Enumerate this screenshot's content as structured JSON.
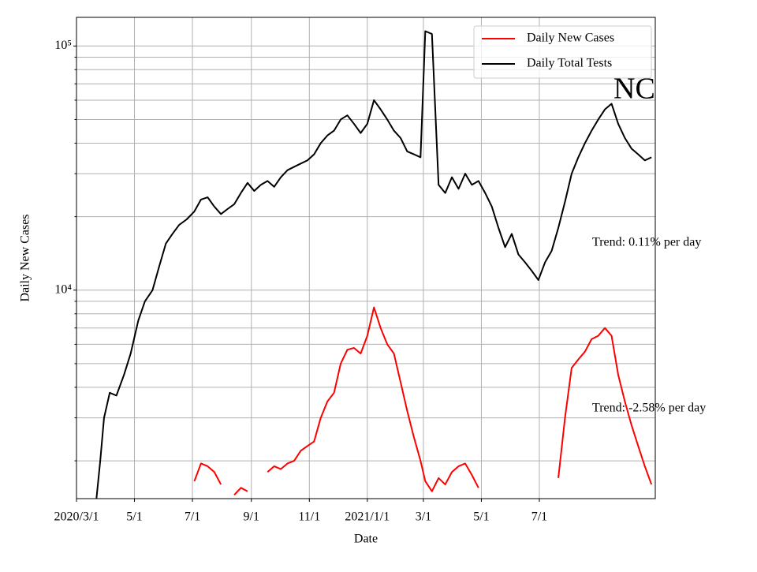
{
  "chart_data": {
    "type": "line",
    "title": "NC",
    "xlabel": "Date",
    "ylabel": "Daily New Cases",
    "log_y": true,
    "grid": true,
    "legend": "upper right",
    "annotations": [
      "Trend: 0.11% per day",
      "Trend: -2.58% per day"
    ],
    "x": [
      "2020-03-22",
      "2020-03-26",
      "2020-03-30",
      "2020-04-05",
      "2020-04-12",
      "2020-04-20",
      "2020-04-27",
      "2020-05-05",
      "2020-05-12",
      "2020-05-20",
      "2020-05-27",
      "2020-06-03",
      "2020-06-10",
      "2020-06-17",
      "2020-06-25",
      "2020-07-03",
      "2020-07-10",
      "2020-07-17",
      "2020-07-24",
      "2020-07-31",
      "2020-08-07",
      "2020-08-14",
      "2020-08-21",
      "2020-08-28",
      "2020-09-04",
      "2020-09-11",
      "2020-09-18",
      "2020-09-25",
      "2020-10-02",
      "2020-10-09",
      "2020-10-16",
      "2020-10-23",
      "2020-10-30",
      "2020-11-06",
      "2020-11-13",
      "2020-11-20",
      "2020-11-27",
      "2020-12-04",
      "2020-12-11",
      "2020-12-18",
      "2020-12-25",
      "2021-01-01",
      "2021-01-08",
      "2021-01-15",
      "2021-01-22",
      "2021-01-29",
      "2021-02-05",
      "2021-02-12",
      "2021-02-19",
      "2021-02-26",
      "2021-03-03",
      "2021-03-10",
      "2021-03-17",
      "2021-03-24",
      "2021-03-31",
      "2021-04-07",
      "2021-04-14",
      "2021-04-21",
      "2021-04-28",
      "2021-05-05",
      "2021-05-12",
      "2021-05-19",
      "2021-05-26",
      "2021-06-02",
      "2021-06-09",
      "2021-06-16",
      "2021-06-23",
      "2021-06-30",
      "2021-07-07",
      "2021-07-14",
      "2021-07-21",
      "2021-07-28",
      "2021-08-04",
      "2021-08-11",
      "2021-08-18",
      "2021-08-25",
      "2021-09-01",
      "2021-09-08",
      "2021-09-15",
      "2021-09-22",
      "2021-09-29",
      "2021-10-06",
      "2021-10-13",
      "2021-10-20",
      "2021-10-27"
    ],
    "series": [
      {
        "name": "Daily New Cases",
        "color": "#ff0000",
        "values": [
          null,
          null,
          null,
          null,
          null,
          null,
          null,
          null,
          null,
          null,
          null,
          null,
          null,
          null,
          null,
          1650,
          1950,
          1900,
          1800,
          1600,
          null,
          1450,
          1550,
          1500,
          null,
          null,
          1800,
          1900,
          1850,
          1950,
          2000,
          2200,
          2300,
          2400,
          3000,
          3500,
          3800,
          5000,
          5700,
          5800,
          5500,
          6500,
          8500,
          7000,
          6000,
          5500,
          4200,
          3200,
          2500,
          2000,
          1650,
          1500,
          1700,
          1600,
          1800,
          1900,
          1950,
          1750,
          1550,
          null,
          null,
          null,
          null,
          null,
          null,
          null,
          null,
          null,
          null,
          null,
          1700,
          3000,
          4800,
          5200,
          5600,
          6300,
          6500,
          7000,
          6500,
          4500,
          3500,
          2800,
          2300,
          1900,
          1600
        ]
      },
      {
        "name": "Daily Total Tests",
        "color": "#000000",
        "values": [
          1400,
          2000,
          3000,
          3800,
          3700,
          4500,
          5500,
          7500,
          9000,
          10000,
          12500,
          15500,
          17000,
          18500,
          19500,
          21000,
          23500,
          24000,
          22000,
          20500,
          21500,
          22500,
          25000,
          27500,
          25500,
          27000,
          28000,
          26500,
          29000,
          31000,
          32000,
          33000,
          34000,
          36000,
          40000,
          43000,
          45000,
          50000,
          52000,
          48000,
          44000,
          48000,
          60000,
          55000,
          50000,
          45000,
          42000,
          37000,
          36000,
          35000,
          115000,
          112000,
          27000,
          25000,
          29000,
          26000,
          30000,
          27000,
          28000,
          25000,
          22000,
          18000,
          15000,
          17000,
          14000,
          13000,
          12000,
          11000,
          13000,
          14500,
          18000,
          23000,
          30000,
          35000,
          40000,
          45000,
          50000,
          55000,
          58000,
          48000,
          42000,
          38000,
          36000,
          34000,
          35000
        ]
      }
    ],
    "xlim": [
      "2020-03-01",
      "2021-10-31"
    ],
    "xticks": [
      {
        "value": "2020-03-01",
        "label": "2020/3/1"
      },
      {
        "value": "2020-05-01",
        "label": "5/1"
      },
      {
        "value": "2020-07-01",
        "label": "7/1"
      },
      {
        "value": "2020-09-01",
        "label": "9/1"
      },
      {
        "value": "2020-11-01",
        "label": "11/1"
      },
      {
        "value": "2021-01-01",
        "label": "2021/1/1"
      },
      {
        "value": "2021-03-01",
        "label": "3/1"
      },
      {
        "value": "2021-05-01",
        "label": "5/1"
      },
      {
        "value": "2021-07-01",
        "label": "7/1"
      }
    ],
    "ylim": [
      1400,
      131000
    ],
    "yticks": [
      {
        "value": 10000,
        "label": "10⁴"
      },
      {
        "value": 100000,
        "label": "10⁵"
      }
    ],
    "yminor_ticks": [
      2000,
      3000,
      4000,
      5000,
      6000,
      7000,
      8000,
      9000,
      20000,
      30000,
      40000,
      50000,
      60000,
      70000,
      80000,
      90000
    ]
  }
}
